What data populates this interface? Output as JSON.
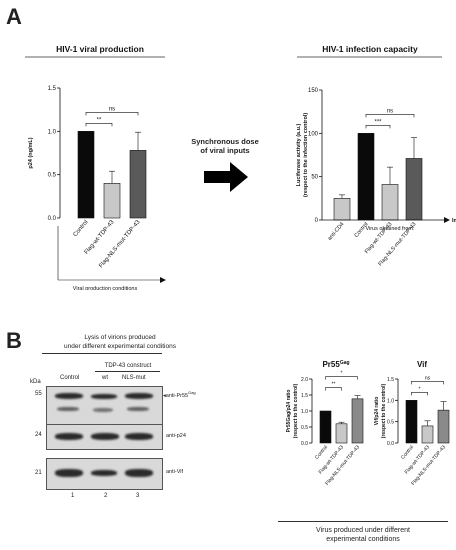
{
  "panel_a": {
    "letter": "A",
    "arrow_label_line1": "Synchronous dose",
    "arrow_label_line2": "of viral inputs"
  },
  "panel_b": {
    "letter": "B",
    "lysis_line1": "Lysis of virions produced",
    "lysis_line2": "under different experimental conditions",
    "tdp_construct": "TDP-43 construct",
    "lane_headers": [
      "Control",
      "wt",
      "NLS-mut"
    ],
    "kda": "kDa",
    "markers": [
      "55",
      "24",
      "21"
    ],
    "blot_labels": [
      "anti-Pr55",
      "Gag",
      "anti-p24",
      "anti-Vif"
    ],
    "lane_numbers": [
      "1",
      "2",
      "3"
    ],
    "bottom_line1": "Virus produced under different",
    "bottom_line2": "experimental conditions"
  },
  "chart_data": [
    {
      "type": "bar",
      "title": "HIV-1 viral production",
      "ylabel": "p24 (ng/mL)",
      "xlabel": "Viral production conditions",
      "categories": [
        "Control",
        "Flag-wt-TDP-43",
        "Flag-NLS-mut-TDP-43"
      ],
      "values": [
        1.0,
        0.4,
        0.78
      ],
      "errors": [
        0,
        0.14,
        0.21
      ],
      "colors": [
        "#0a0a0a",
        "#c8c8c8",
        "#5a5a5a"
      ],
      "ylim": [
        0,
        1.5
      ],
      "yticks": [
        "0.0",
        "0.5",
        "1.0",
        "1.5"
      ],
      "significance": [
        {
          "from": 0,
          "to": 1,
          "label": "**"
        },
        {
          "from": 0,
          "to": 2,
          "label": "ns"
        }
      ]
    },
    {
      "type": "bar",
      "title": "HIV-1 infection capacity",
      "ylabel": "Luciferase activity (a.u.)",
      "ylabel2": "(respect to the infection control)",
      "categories": [
        "anti-CD4",
        "Control",
        "Flag-wt-TDP-43",
        "Flag-NLS-mut-TDP-43"
      ],
      "values": [
        25,
        100,
        41,
        71
      ],
      "errors": [
        4,
        0,
        20,
        24
      ],
      "colors": [
        "#c8c8c8",
        "#0a0a0a",
        "#c8c8c8",
        "#5a5a5a"
      ],
      "ylim": [
        0,
        150
      ],
      "yticks": [
        "0",
        "50",
        "100",
        "150"
      ],
      "group_label": "Virus obtained from:",
      "axis_arrow_label": "Infection",
      "significance": [
        {
          "from": 1,
          "to": 2,
          "label": "***"
        },
        {
          "from": 1,
          "to": 3,
          "label": "ns"
        }
      ]
    },
    {
      "type": "bar",
      "title": "Pr55",
      "title_sup": "Gag",
      "ylabel": "Pr55Gag/p24 ratio",
      "ylabel2": "(respect to the control)",
      "categories": [
        "Control",
        "Flag-wt-TDP-43",
        "Flag-NLS-mut-TDP-43"
      ],
      "values": [
        1.0,
        0.6,
        1.38
      ],
      "errors": [
        0,
        0.05,
        0.1
      ],
      "colors": [
        "#0a0a0a",
        "#c8c8c8",
        "#8a8a8a"
      ],
      "ylim": [
        0,
        2.0
      ],
      "yticks": [
        "0.0",
        "0.5",
        "1.0",
        "1.5",
        "2.0"
      ],
      "significance": [
        {
          "from": 0,
          "to": 1,
          "label": "**"
        },
        {
          "from": 0,
          "to": 2,
          "label": "*"
        }
      ]
    },
    {
      "type": "bar",
      "title": "Vif",
      "ylabel": "Vif/p24 ratio",
      "ylabel2": "(respect to the control)",
      "categories": [
        "Control",
        "Flag-wt-TDP-43",
        "Flag-NLS-mut-TDP-43"
      ],
      "values": [
        1.0,
        0.4,
        0.77
      ],
      "errors": [
        0,
        0.12,
        0.2
      ],
      "colors": [
        "#0a0a0a",
        "#c8c8c8",
        "#8a8a8a"
      ],
      "ylim": [
        0,
        1.5
      ],
      "yticks": [
        "0.0",
        "0.5",
        "1.0",
        "1.5"
      ],
      "significance": [
        {
          "from": 0,
          "to": 1,
          "label": "*"
        },
        {
          "from": 0,
          "to": 2,
          "label": "ns"
        }
      ]
    }
  ]
}
